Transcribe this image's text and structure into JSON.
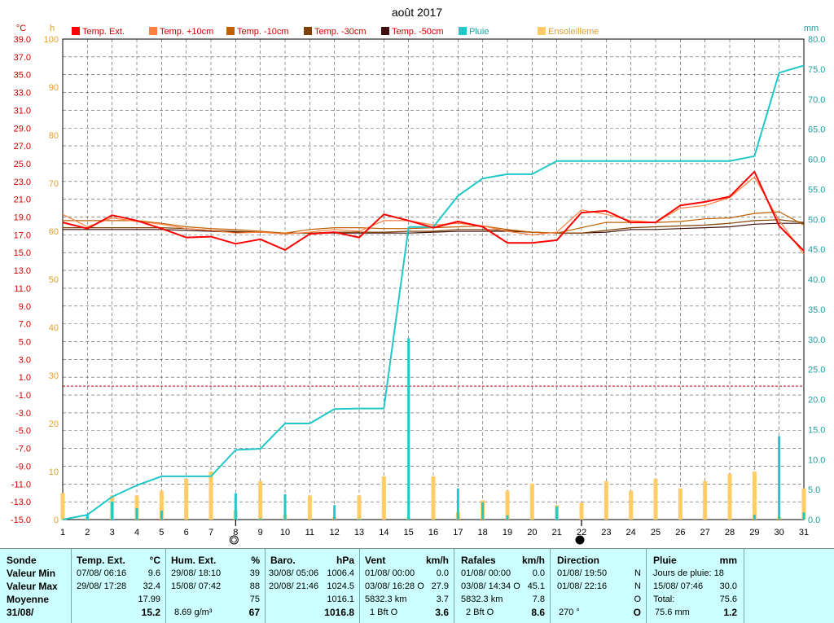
{
  "chart_data": {
    "type": "line",
    "title": "août 2017",
    "left_unit_1": "°C",
    "left_unit_2": "h",
    "right_unit": "mm",
    "x": [
      1,
      2,
      3,
      4,
      5,
      6,
      7,
      8,
      9,
      10,
      11,
      12,
      13,
      14,
      15,
      16,
      17,
      18,
      19,
      20,
      21,
      22,
      23,
      24,
      25,
      26,
      27,
      28,
      29,
      30,
      31
    ],
    "xlim": [
      1,
      31
    ],
    "temp_axis": {
      "min": -15.0,
      "max": 39.0,
      "ticks": [
        "39.0",
        "37.0",
        "35.0",
        "33.0",
        "31.0",
        "29.0",
        "27.0",
        "25.0",
        "23.0",
        "21.0",
        "19.0",
        "17.0",
        "15.0",
        "13.0",
        "11.0",
        "9.0",
        "7.0",
        "5.0",
        "3.0",
        "1.0",
        "-1.0",
        "-3.0",
        "-5.0",
        "-7.0",
        "-9.0",
        "-11.0",
        "-13.0",
        "-15.0"
      ]
    },
    "hours_axis": {
      "min": 0,
      "max": 100,
      "ticks": [
        "100",
        "90",
        "80",
        "70",
        "60",
        "50",
        "40",
        "30",
        "20",
        "10",
        "0"
      ]
    },
    "rain_axis": {
      "min": 0.0,
      "max": 80.0,
      "ticks": [
        "80.0",
        "75.0",
        "70.0",
        "65.0",
        "60.0",
        "55.0",
        "50.0",
        "45.0",
        "40.0",
        "35.0",
        "30.0",
        "25.0",
        "20.0",
        "15.0",
        "10.0",
        "5.0",
        "0.0"
      ]
    },
    "reference_line_temp": 0.0,
    "moon_markers": [
      {
        "day": 8,
        "phase": "full"
      },
      {
        "day": 22,
        "phase": "new"
      }
    ],
    "grid": true,
    "legend_placement": "top",
    "series": [
      {
        "name": "Temp. Ext.",
        "color": "#ff0000",
        "axis": "temp",
        "values": [
          18.4,
          17.7,
          19.2,
          18.6,
          17.7,
          16.7,
          16.8,
          16.0,
          16.5,
          15.3,
          17.1,
          17.3,
          16.7,
          19.3,
          18.6,
          17.8,
          18.5,
          17.9,
          16.1,
          16.1,
          16.4,
          19.5,
          19.7,
          18.4,
          18.4,
          20.3,
          20.7,
          21.3,
          24.1,
          18.0,
          15.2
        ]
      },
      {
        "name": "Temp. +10cm",
        "color": "#ff8040",
        "axis": "temp",
        "values": [
          19.3,
          17.9,
          18.9,
          18.5,
          18.2,
          17.7,
          17.5,
          17.2,
          17.3,
          17.1,
          17.3,
          17.6,
          17.4,
          18.6,
          18.6,
          18.1,
          18.3,
          18.0,
          17.4,
          17.0,
          17.3,
          19.8,
          19.3,
          18.6,
          18.4,
          20.0,
          20.3,
          21.2,
          23.5,
          18.6,
          14.8
        ]
      },
      {
        "name": "Temp. -10cm",
        "color": "#c06000",
        "axis": "temp",
        "values": [
          18.6,
          18.6,
          18.6,
          18.6,
          18.3,
          17.9,
          17.7,
          17.6,
          17.4,
          17.2,
          17.6,
          17.8,
          17.8,
          17.7,
          17.7,
          17.8,
          17.9,
          18.0,
          17.6,
          17.3,
          17.2,
          17.8,
          18.4,
          18.4,
          18.4,
          18.5,
          18.8,
          18.9,
          19.4,
          19.6,
          18.1
        ]
      },
      {
        "name": "Temp. -30cm",
        "color": "#804000",
        "axis": "temp",
        "values": [
          17.8,
          17.8,
          17.8,
          17.8,
          17.8,
          17.7,
          17.5,
          17.4,
          17.3,
          17.2,
          17.2,
          17.3,
          17.3,
          17.3,
          17.4,
          17.4,
          17.6,
          17.6,
          17.5,
          17.3,
          17.2,
          17.2,
          17.5,
          17.8,
          17.9,
          18.0,
          18.1,
          18.3,
          18.6,
          18.7,
          18.4
        ]
      },
      {
        "name": "Temp. -50cm",
        "color": "#401010",
        "axis": "temp",
        "values": [
          17.6,
          17.6,
          17.6,
          17.6,
          17.6,
          17.5,
          17.4,
          17.3,
          17.3,
          17.2,
          17.2,
          17.2,
          17.2,
          17.2,
          17.2,
          17.3,
          17.4,
          17.4,
          17.4,
          17.3,
          17.2,
          17.2,
          17.3,
          17.6,
          17.6,
          17.7,
          17.8,
          17.9,
          18.2,
          18.3,
          18.3
        ]
      },
      {
        "name": "Pluie",
        "color": "#20c8c8",
        "axis": "rain",
        "values": [
          0.0,
          0.8,
          3.8,
          5.7,
          7.2,
          7.2,
          7.2,
          11.6,
          11.8,
          16.0,
          16.0,
          18.4,
          18.5,
          18.5,
          48.7,
          48.7,
          53.9,
          56.8,
          57.5,
          57.5,
          59.7,
          59.7,
          59.7,
          59.7,
          59.7,
          59.7,
          59.7,
          59.7,
          60.5,
          74.4,
          75.6
        ]
      },
      {
        "name": "Ensoleilleme",
        "color": "#ffcc66",
        "axis": "hours",
        "values": [
          5.5,
          0.5,
          5.0,
          5.0,
          6.0,
          8.5,
          10.0,
          2.0,
          8.0,
          1.0,
          5.0,
          0.5,
          5.0,
          9.0,
          0.5,
          9.0,
          1.5,
          4.0,
          6.0,
          7.5,
          3.0,
          3.5,
          8.0,
          6.0,
          8.5,
          6.5,
          8.0,
          9.5,
          10.0,
          0.5,
          6.5
        ]
      }
    ],
    "daily_rain_bars": {
      "color": "#20c8c8",
      "axis": "rain",
      "values": [
        0.0,
        0.8,
        3.0,
        1.9,
        1.5,
        0.0,
        0.0,
        4.4,
        0.2,
        4.2,
        0.0,
        2.4,
        0.1,
        0.0,
        30.2,
        0.0,
        5.2,
        2.9,
        0.7,
        0.0,
        2.2,
        0.0,
        0.0,
        0.0,
        0.0,
        0.0,
        0.0,
        0.0,
        0.8,
        13.9,
        1.2
      ]
    }
  },
  "stats": {
    "labels": {
      "l1": "Sonde",
      "l2": "Valeur Min",
      "l3": "Valeur Max",
      "l4": "Moyenne",
      "l5": "31/08/"
    },
    "temp": {
      "title": "Temp. Ext.",
      "unit": "°C",
      "min_time": "07/08/  06:16",
      "min_val": "9.6",
      "max_time": "29/08/  17:28",
      "max_val": "32.4",
      "avg": "17.99",
      "last": "15.2"
    },
    "hum": {
      "title": "Hum. Ext.",
      "unit": "%",
      "min_time": "29/08/  18:10",
      "min_val": "39",
      "max_time": "15/08/  07:42",
      "max_val": "88",
      "avg": "75",
      "extra": "8.69 g/m³",
      "last": "67"
    },
    "baro": {
      "title": "Baro.",
      "unit": "hPa",
      "min_time": "30/08/  05:06",
      "min_val": "1006.4",
      "max_time": "20/08/  21:46",
      "max_val": "1024.5",
      "avg": "1016.1",
      "last": "1016.8"
    },
    "vent": {
      "title": "Vent",
      "unit": "km/h",
      "min_time": "01/08/  00:00",
      "min_val": "0.0",
      "max_time": "03/08/  16:28  O",
      "max_val": "27.9",
      "avg_label": "5832.3 km",
      "avg": "3.7",
      "last_label": "1 Bft O",
      "last": "3.6"
    },
    "rafales": {
      "title": "Rafales",
      "unit": "km/h",
      "min_time": "01/08/  00:00",
      "min_val": "0.0",
      "max_time": "03/08/  14:34  O",
      "max_val": "45.1",
      "avg_label": "5832.3 km",
      "avg": "7.8",
      "last_label": "2 Bft O",
      "last": "8.6"
    },
    "direction": {
      "title": "Direction",
      "min_time": "01/08/  19:50",
      "min_val": "N",
      "max_time": "01/08/  22:16",
      "max_val": "N",
      "avg": "O",
      "last_label": "270 °",
      "last": "O"
    },
    "pluie": {
      "title": "Pluie",
      "unit": "mm",
      "r1": "Jours de pluie: 18",
      "max_time": "15/08/  07:46",
      "max_val": "30.0",
      "total_label": "Total:",
      "total": "75.6",
      "last_label": "75.6 mm",
      "last": "1.2"
    }
  }
}
